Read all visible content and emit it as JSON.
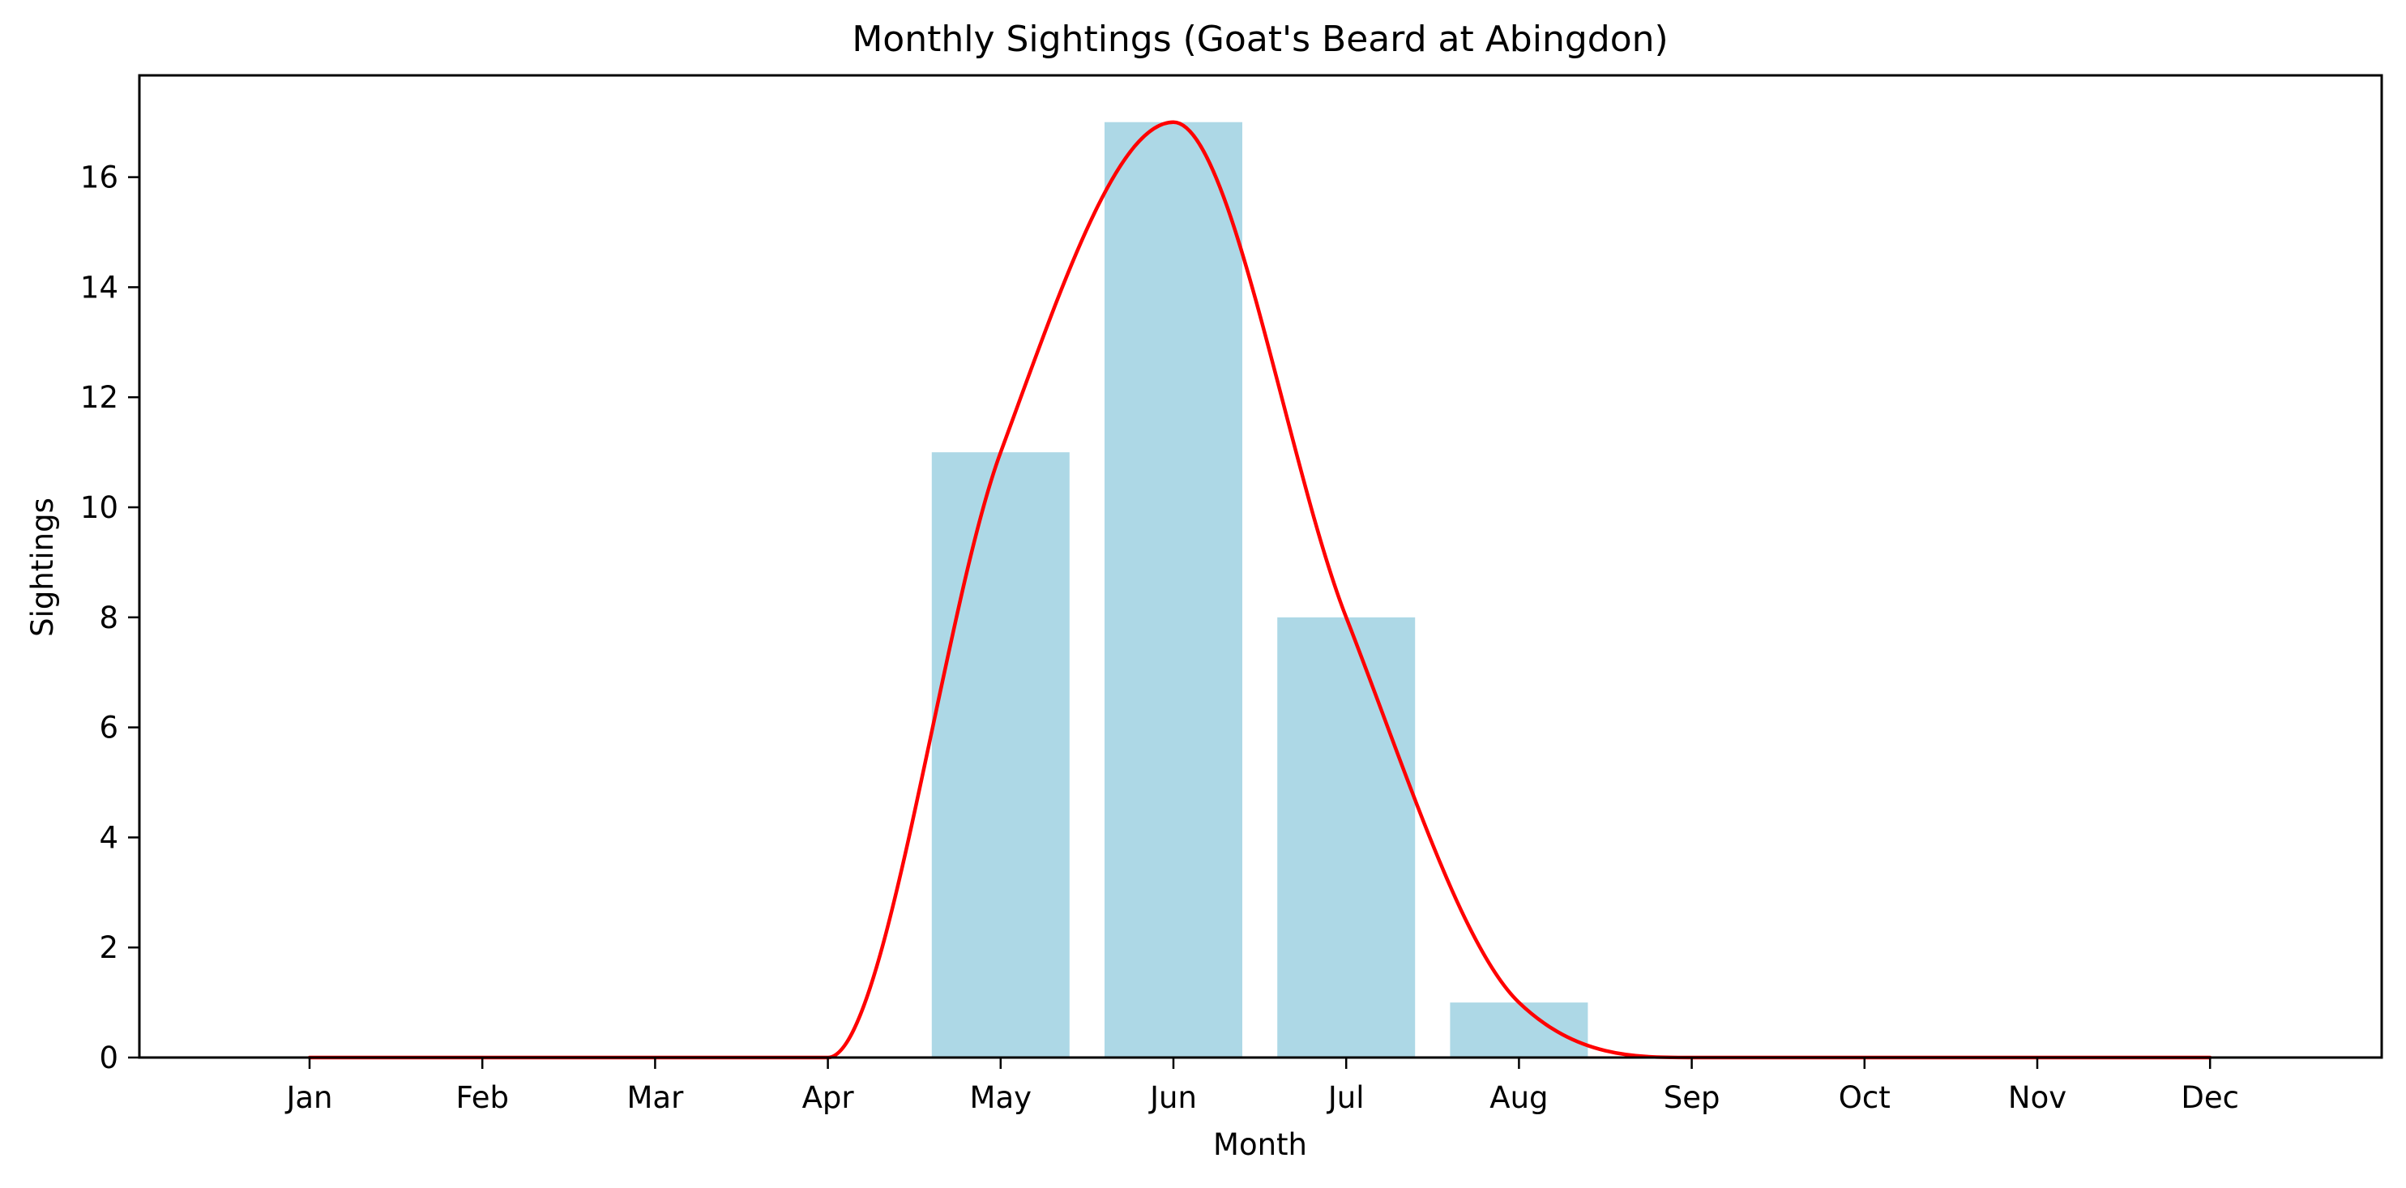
{
  "chart_data": {
    "type": "bar",
    "title": "Monthly Sightings (Goat's Beard at Abingdon)",
    "xlabel": "Month",
    "ylabel": "Sightings",
    "categories": [
      "Jan",
      "Feb",
      "Mar",
      "Apr",
      "May",
      "Jun",
      "Jul",
      "Aug",
      "Sep",
      "Oct",
      "Nov",
      "Dec"
    ],
    "series": [
      {
        "type": "bar",
        "values": [
          0,
          0,
          0,
          0,
          11,
          17,
          8,
          1,
          0,
          0,
          0,
          0
        ],
        "color": "#add8e6"
      },
      {
        "type": "line",
        "smooth": true,
        "values": [
          0,
          0,
          0,
          0,
          11,
          17,
          8,
          1,
          0,
          0,
          0,
          0
        ],
        "color": "#ff0000"
      }
    ],
    "ylim": [
      0,
      17.85
    ],
    "yticks": [
      0,
      2,
      4,
      6,
      8,
      10,
      12,
      14,
      16
    ],
    "grid": false,
    "legend": "none"
  }
}
